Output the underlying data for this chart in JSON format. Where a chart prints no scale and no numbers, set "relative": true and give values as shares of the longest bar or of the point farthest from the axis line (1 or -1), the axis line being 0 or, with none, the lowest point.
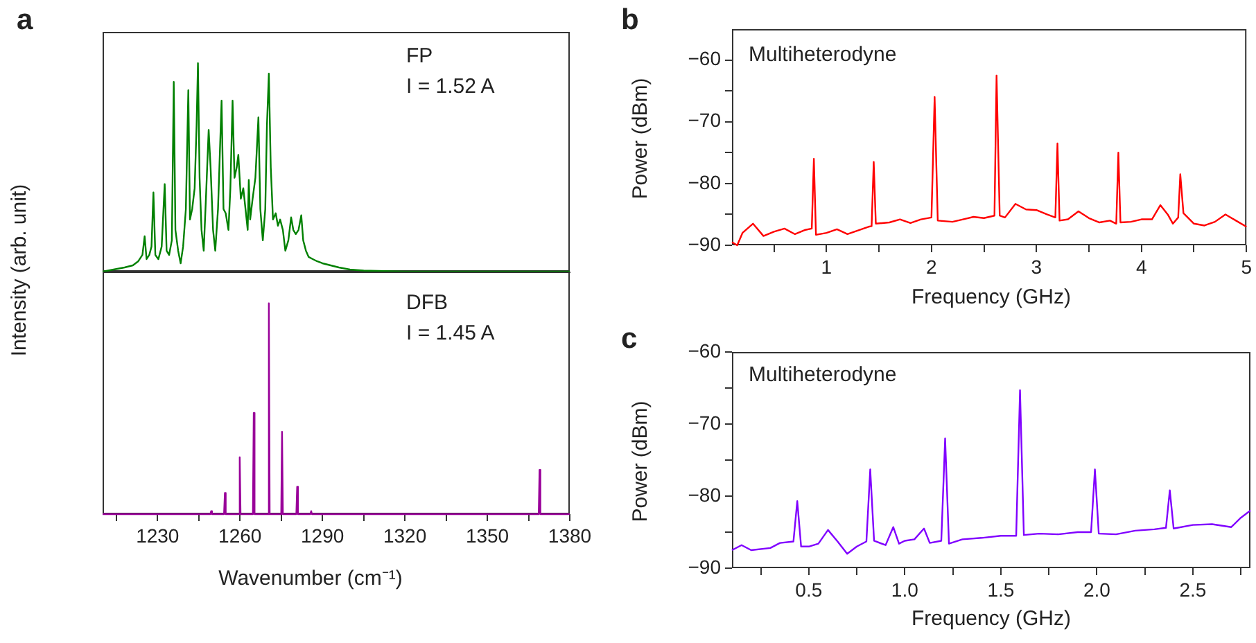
{
  "chart_data": [
    {
      "type": "line",
      "relative": true,
      "title": "a",
      "ylabel": "Intensity (arb. unit)",
      "annotations": [
        "FP",
        "I = 1.52 A"
      ],
      "xlim": [
        1210,
        1380
      ],
      "xticks": [
        {
          "value": 1215,
          "label": null
        },
        1230,
        {
          "value": 1245,
          "label": null
        },
        1260,
        {
          "value": 1275,
          "label": null
        },
        1290,
        {
          "value": 1305,
          "label": null
        },
        1320,
        {
          "value": 1335,
          "label": null
        },
        1350,
        {
          "value": 1365,
          "label": null
        },
        1380
      ],
      "tick_labels": false,
      "marker": "none",
      "series": [
        {
          "color": "#008000",
          "x": [
            1210,
            1214,
            1218,
            1221,
            1223,
            1224.5,
            1225.3,
            1226,
            1227,
            1227.8,
            1228.5,
            1229.2,
            1230.3,
            1231.5,
            1232.6,
            1233.3,
            1234.2,
            1235.2,
            1235.9,
            1236.5,
            1237.5,
            1238.4,
            1239.3,
            1240.3,
            1241.2,
            1241.8,
            1242.6,
            1243.5,
            1244.2,
            1244.7,
            1245.3,
            1246,
            1246.8,
            1247.6,
            1248.6,
            1249.3,
            1250.2,
            1251,
            1252,
            1253.3,
            1254,
            1254.8,
            1255.8,
            1256.5,
            1257.3,
            1258,
            1258.8,
            1259.4,
            1260.3,
            1261.2,
            1262,
            1262.8,
            1263.2,
            1263.7,
            1264.6,
            1265.6,
            1266.7,
            1267.4,
            1268.3,
            1269.2,
            1269.8,
            1270.5,
            1271.2,
            1272,
            1273,
            1273.8,
            1274.6,
            1275.6,
            1276.5,
            1277.6,
            1278.6,
            1279.4,
            1280.3,
            1281.3,
            1282.3,
            1283,
            1284,
            1285,
            1286.5,
            1288,
            1290,
            1293,
            1296,
            1300,
            1305,
            1320,
            1380
          ],
          "values": [
            0,
            0.01,
            0.02,
            0.03,
            0.05,
            0.08,
            0.17,
            0.06,
            0.08,
            0.12,
            0.38,
            0.08,
            0.06,
            0.12,
            0.42,
            0.1,
            0.08,
            0.15,
            0.91,
            0.2,
            0.1,
            0.04,
            0.12,
            0.3,
            0.87,
            0.25,
            0.3,
            0.4,
            0.7,
            1,
            0.45,
            0.2,
            0.1,
            0.35,
            0.68,
            0.5,
            0.2,
            0.1,
            0.3,
            0.82,
            0.3,
            0.28,
            0.2,
            0.4,
            0.82,
            0.45,
            0.5,
            0.56,
            0.35,
            0.4,
            0.3,
            0.2,
            0.44,
            0.25,
            0.35,
            0.45,
            0.74,
            0.3,
            0.15,
            0.3,
            0.7,
            0.95,
            0.5,
            0.25,
            0.28,
            0.22,
            0.25,
            0.2,
            0.1,
            0.15,
            0.26,
            0.2,
            0.18,
            0.2,
            0.27,
            0.15,
            0.1,
            0.07,
            0.06,
            0.05,
            0.04,
            0.03,
            0.02,
            0.01,
            0.005,
            0,
            0
          ]
        }
      ]
    },
    {
      "type": "line",
      "relative": true,
      "xlabel": "Wavenumber (cm⁻¹)",
      "annotations": [
        "DFB",
        "I = 1.45 A"
      ],
      "xlim": [
        1210,
        1380
      ],
      "xticks": [
        {
          "value": 1215,
          "label": null
        },
        1230,
        {
          "value": 1245,
          "label": null
        },
        1260,
        {
          "value": 1275,
          "label": null
        },
        1290,
        {
          "value": 1305,
          "label": null
        },
        1320,
        {
          "value": 1335,
          "label": null
        },
        1350,
        {
          "value": 1365,
          "label": null
        },
        1380
      ],
      "tick_labels": "x",
      "marker": "none",
      "series": [
        {
          "color": "#990099",
          "x": [
            1210,
            1249.2,
            1249.5,
            1249.8,
            1254.2,
            1254.5,
            1254.8,
            1259.6,
            1259.9,
            1260.2,
            1264.7,
            1265,
            1265.3,
            1270.2,
            1270.5,
            1270.8,
            1275,
            1275.3,
            1275.6,
            1280.5,
            1280.8,
            1281.1,
            1285.6,
            1285.9,
            1286.2,
            1368.7,
            1369,
            1369.3,
            1380
          ],
          "values": [
            0,
            0,
            0.014,
            0,
            0,
            0.1,
            0,
            0,
            0.27,
            0,
            0,
            0.48,
            0,
            0,
            1,
            0,
            0,
            0.39,
            0,
            0,
            0.13,
            0,
            0,
            0.014,
            0,
            0,
            0.21,
            0,
            0
          ]
        }
      ]
    },
    {
      "type": "line",
      "title": "b",
      "xlabel": "Frequency (GHz)",
      "ylabel": "Power (dBm)",
      "annotations": [
        "Multiheterodyne"
      ],
      "xlim": [
        0.1,
        5
      ],
      "ylim": [
        -90,
        -55
      ],
      "xticks": [
        {
          "value": 0.5,
          "label": null
        },
        1,
        {
          "value": 1.5,
          "label": null
        },
        2,
        {
          "value": 2.5,
          "label": null
        },
        3,
        {
          "value": 3.5,
          "label": null
        },
        4,
        {
          "value": 4.5,
          "label": null
        },
        5
      ],
      "yticks": [
        {
          "value": -90,
          "label": "−90"
        },
        {
          "value": -85,
          "label": null
        },
        {
          "value": -80,
          "label": "−80"
        },
        {
          "value": -75,
          "label": null
        },
        {
          "value": -70,
          "label": "−70"
        },
        {
          "value": -65,
          "label": null
        },
        {
          "value": -60,
          "label": "−60"
        }
      ],
      "marker": "none",
      "series": [
        {
          "color": "#ff0000",
          "x": [
            0.1,
            0.15,
            0.2,
            0.3,
            0.4,
            0.5,
            0.6,
            0.7,
            0.8,
            0.86,
            0.88,
            0.9,
            1.0,
            1.1,
            1.2,
            1.3,
            1.4,
            1.43,
            1.45,
            1.47,
            1.6,
            1.7,
            1.8,
            1.9,
            2.0,
            2.03,
            2.06,
            2.2,
            2.3,
            2.4,
            2.5,
            2.6,
            2.62,
            2.65,
            2.7,
            2.8,
            2.9,
            3.0,
            3.1,
            3.18,
            3.2,
            3.22,
            3.3,
            3.4,
            3.5,
            3.6,
            3.7,
            3.76,
            3.78,
            3.8,
            3.9,
            4.0,
            4.1,
            4.18,
            4.25,
            4.3,
            4.35,
            4.37,
            4.4,
            4.5,
            4.6,
            4.7,
            4.8,
            4.9,
            5.0
          ],
          "values": [
            -89.5,
            -90,
            -88,
            -86.5,
            -88.5,
            -87.8,
            -87.3,
            -88.2,
            -87.5,
            -87.3,
            -76,
            -88.3,
            -88,
            -87.4,
            -88.2,
            -87.6,
            -87,
            -86.9,
            -76.5,
            -86.5,
            -86.3,
            -85.8,
            -86.4,
            -85.8,
            -85.5,
            -66,
            -86,
            -86.2,
            -85.8,
            -85.4,
            -85.6,
            -85.2,
            -62.5,
            -85.2,
            -85.5,
            -83.3,
            -84.2,
            -84.3,
            -85,
            -85.5,
            -73.5,
            -86,
            -85.8,
            -84.5,
            -85.6,
            -86.3,
            -86,
            -86.5,
            -75,
            -86.3,
            -86.2,
            -85.8,
            -85.8,
            -83.5,
            -85,
            -86.5,
            -85.5,
            -78.5,
            -84.8,
            -86.5,
            -86.8,
            -86.2,
            -85,
            -86,
            -87
          ]
        }
      ]
    },
    {
      "type": "line",
      "title": "c",
      "xlabel": "Frequency (GHz)",
      "ylabel": "Power (dBm)",
      "annotations": [
        "Multiheterodyne"
      ],
      "xlim": [
        0.1,
        2.8
      ],
      "ylim": [
        -90,
        -60
      ],
      "xticks": [
        {
          "value": 0.25,
          "label": null
        },
        0.5,
        {
          "value": 0.75,
          "label": null
        },
        {
          "value": 1,
          "label": "1.0"
        },
        {
          "value": 1.25,
          "label": null
        },
        1.5,
        {
          "value": 1.75,
          "label": null
        },
        {
          "value": 2,
          "label": "2.0"
        },
        {
          "value": 2.25,
          "label": null
        },
        2.5,
        {
          "value": 2.75,
          "label": null
        }
      ],
      "yticks": [
        {
          "value": -90,
          "label": "−90"
        },
        {
          "value": -85,
          "label": null
        },
        {
          "value": -80,
          "label": "−80"
        },
        {
          "value": -75,
          "label": null
        },
        {
          "value": -70,
          "label": "−70"
        },
        {
          "value": -65,
          "label": null
        },
        {
          "value": -60,
          "label": "−60"
        }
      ],
      "marker": "none",
      "series": [
        {
          "color": "#8000ff",
          "x": [
            0.1,
            0.15,
            0.2,
            0.3,
            0.35,
            0.42,
            0.44,
            0.46,
            0.5,
            0.55,
            0.6,
            0.65,
            0.7,
            0.75,
            0.8,
            0.82,
            0.84,
            0.9,
            0.94,
            0.97,
            1.0,
            1.05,
            1.1,
            1.13,
            1.19,
            1.21,
            1.23,
            1.3,
            1.4,
            1.5,
            1.58,
            1.6,
            1.62,
            1.7,
            1.8,
            1.9,
            1.97,
            1.99,
            2.01,
            2.1,
            2.2,
            2.3,
            2.36,
            2.38,
            2.4,
            2.5,
            2.6,
            2.7,
            2.75,
            2.8
          ],
          "values": [
            -87.5,
            -86.8,
            -87.5,
            -87.2,
            -86.5,
            -86.3,
            -80.7,
            -87,
            -87,
            -86.6,
            -84.7,
            -86.3,
            -88,
            -87,
            -86.3,
            -76.3,
            -86.2,
            -86.8,
            -84.3,
            -86.6,
            -86.2,
            -86,
            -84.5,
            -86.5,
            -86.2,
            -72,
            -86.6,
            -86,
            -85.8,
            -85.5,
            -85.5,
            -65.3,
            -85.4,
            -85.2,
            -85.3,
            -85,
            -85,
            -76.3,
            -85.2,
            -85.3,
            -84.8,
            -84.6,
            -84.4,
            -79.2,
            -84.5,
            -84,
            -83.9,
            -84.3,
            -83,
            -82
          ]
        }
      ]
    }
  ]
}
